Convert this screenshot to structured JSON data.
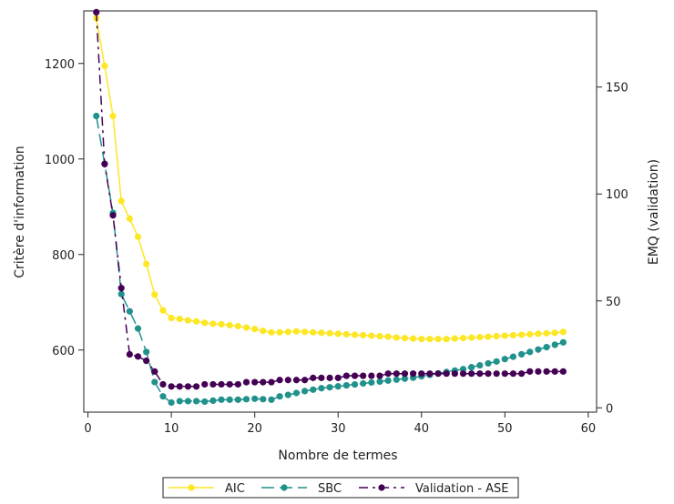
{
  "chart_data": {
    "type": "line",
    "xlabel": "Nombre de termes",
    "ylabel_left": "Critère d'information",
    "ylabel_right": "EMQ (validation)",
    "x_ticks": [
      0,
      10,
      20,
      30,
      40,
      50,
      60
    ],
    "y_left_ticks": [
      600,
      800,
      1000,
      1200
    ],
    "y_right_ticks": [
      0,
      50,
      100,
      150
    ],
    "xlim": [
      -0.5,
      61
    ],
    "ylim_left": [
      470,
      1310
    ],
    "ylim_right": [
      -2,
      185.6
    ],
    "legend_position": "bottom",
    "x": [
      1,
      2,
      3,
      4,
      5,
      6,
      7,
      8,
      9,
      10,
      11,
      12,
      13,
      14,
      15,
      16,
      17,
      18,
      19,
      20,
      21,
      22,
      23,
      24,
      25,
      26,
      27,
      28,
      29,
      30,
      31,
      32,
      33,
      34,
      35,
      36,
      37,
      38,
      39,
      40,
      41,
      42,
      43,
      44,
      45,
      46,
      47,
      48,
      49,
      50,
      51,
      52,
      53,
      54,
      55,
      56,
      57
    ],
    "series": [
      {
        "name": "AIC",
        "axis": "left",
        "color": "#fde725",
        "dash": "solid",
        "values": [
          1295,
          1195,
          1090,
          912,
          875,
          837,
          780,
          716,
          683,
          667,
          665,
          662,
          660,
          657,
          655,
          654,
          652,
          650,
          647,
          644,
          640,
          637,
          637,
          638,
          639,
          638,
          637,
          636,
          635,
          634,
          633,
          632,
          631,
          630,
          629,
          628,
          626,
          625,
          624,
          623,
          623,
          623,
          623,
          624,
          625,
          626,
          627,
          628,
          629,
          630,
          631,
          632,
          633,
          634,
          635,
          636,
          638
        ]
      },
      {
        "name": "SBC",
        "axis": "left",
        "color": "#21918c",
        "dash": "long-dash",
        "values": [
          1090,
          990,
          887,
          717,
          681,
          645,
          596,
          533,
          503,
          490,
          493,
          493,
          493,
          492,
          494,
          496,
          496,
          496,
          497,
          498,
          497,
          496,
          503,
          506,
          510,
          514,
          517,
          520,
          522,
          524,
          526,
          528,
          530,
          532,
          534,
          536,
          538,
          540,
          542,
          545,
          548,
          551,
          554,
          557,
          560,
          564,
          568,
          572,
          576,
          581,
          586,
          591,
          596,
          601,
          606,
          611,
          616
        ]
      },
      {
        "name": "Validation - ASE",
        "axis": "right",
        "color": "#440154",
        "dash": "dash-dot",
        "values": [
          185,
          114,
          90,
          56,
          25,
          24,
          22,
          17,
          11,
          10,
          10,
          10,
          10,
          11,
          11,
          11,
          11,
          11,
          12,
          12,
          12,
          12,
          13,
          13,
          13,
          13,
          14,
          14,
          14,
          14,
          15,
          15,
          15,
          15,
          15,
          16,
          16,
          16,
          16,
          16,
          16,
          16,
          16,
          16,
          16,
          16,
          16,
          16,
          16,
          16,
          16,
          16,
          17,
          17,
          17,
          17,
          17
        ]
      }
    ]
  },
  "legend": {
    "items": [
      {
        "label": "AIC"
      },
      {
        "label": "SBC"
      },
      {
        "label": "Validation - ASE"
      }
    ]
  }
}
